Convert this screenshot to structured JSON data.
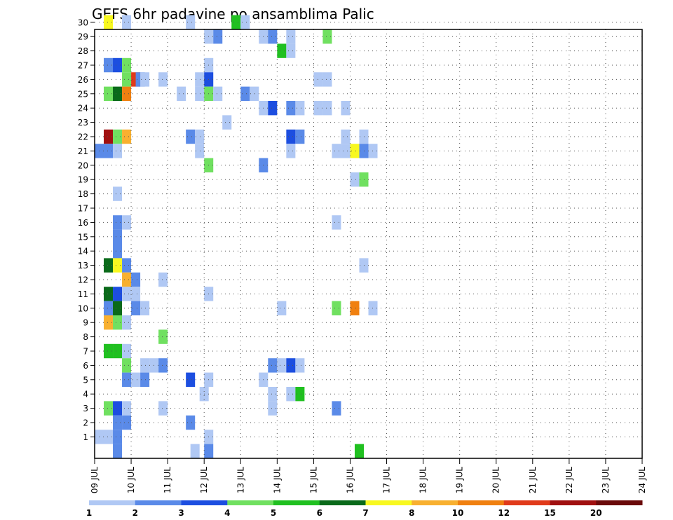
{
  "chart_data": {
    "type": "heatmap",
    "title": "GEFS 6hr padavine po ansamblima Palic",
    "xlabel": "",
    "ylabel": "",
    "x_ticks": [
      "09 JUL",
      "10 JUL",
      "11 JUL",
      "12 JUL",
      "13 JUL",
      "14 JUL",
      "15 JUL",
      "16 JUL",
      "17 JUL",
      "18 JUL",
      "19 JUL",
      "20 JUL",
      "21 JUL",
      "22 JUL",
      "23 JUL",
      "24 JUL"
    ],
    "x_unit": "6-hour step (4 per day)",
    "y_ticks": [
      "1",
      "2",
      "3",
      "4",
      "5",
      "6",
      "7",
      "8",
      "9",
      "10",
      "11",
      "12",
      "13",
      "14",
      "15",
      "16",
      "17",
      "18",
      "19",
      "20",
      "21",
      "22",
      "23",
      "24",
      "25",
      "26",
      "27",
      "28",
      "29",
      "30"
    ],
    "grid": true,
    "colorbar": {
      "labels": [
        "1",
        "2",
        "3",
        "4",
        "5",
        "6",
        "7",
        "8",
        "10",
        "12",
        "15",
        "20"
      ],
      "colors": [
        "#b0c8f4",
        "#5a8ae8",
        "#1c4ee0",
        "#70e060",
        "#20c020",
        "#0a6a1a",
        "#f8f820",
        "#f8b030",
        "#f08010",
        "#e03a1a",
        "#a01010",
        "#6a0a0a"
      ]
    },
    "cells": [
      {
        "step": 1,
        "member": 30,
        "class": 6
      },
      {
        "step": 3,
        "member": 30,
        "class": 0
      },
      {
        "step": 10,
        "member": 30,
        "class": 0
      },
      {
        "step": 15,
        "member": 30,
        "class": 4
      },
      {
        "step": 16,
        "member": 30,
        "class": 0
      },
      {
        "step": 12,
        "member": 29,
        "class": 0
      },
      {
        "step": 13,
        "member": 29,
        "class": 1
      },
      {
        "step": 18,
        "member": 29,
        "class": 0
      },
      {
        "step": 19,
        "member": 29,
        "class": 1
      },
      {
        "step": 21,
        "member": 29,
        "class": 0
      },
      {
        "step": 25,
        "member": 29,
        "class": 3
      },
      {
        "step": 20,
        "member": 28,
        "class": 4
      },
      {
        "step": 21,
        "member": 28,
        "class": 0
      },
      {
        "step": 1,
        "member": 27,
        "class": 1
      },
      {
        "step": 2,
        "member": 27,
        "class": 2
      },
      {
        "step": 3,
        "member": 27,
        "class": 3
      },
      {
        "step": 12,
        "member": 27,
        "class": 0
      },
      {
        "step": 3,
        "member": 26,
        "class": 3
      },
      {
        "step": 4,
        "member": 26,
        "class": 9
      },
      {
        "step": 4.5,
        "member": 26,
        "class": 1
      },
      {
        "step": 5,
        "member": 26,
        "class": 0
      },
      {
        "step": 7,
        "member": 26,
        "class": 0
      },
      {
        "step": 11,
        "member": 26,
        "class": 0
      },
      {
        "step": 12,
        "member": 26,
        "class": 2
      },
      {
        "step": 24,
        "member": 26,
        "class": 0
      },
      {
        "step": 25,
        "member": 26,
        "class": 0
      },
      {
        "step": 1,
        "member": 25,
        "class": 3
      },
      {
        "step": 2,
        "member": 25,
        "class": 5
      },
      {
        "step": 3,
        "member": 25,
        "class": 8
      },
      {
        "step": 9,
        "member": 25,
        "class": 0
      },
      {
        "step": 11,
        "member": 25,
        "class": 0
      },
      {
        "step": 12,
        "member": 25,
        "class": 3
      },
      {
        "step": 13,
        "member": 25,
        "class": 0
      },
      {
        "step": 16,
        "member": 25,
        "class": 1
      },
      {
        "step": 17,
        "member": 25,
        "class": 0
      },
      {
        "step": 18,
        "member": 24,
        "class": 0
      },
      {
        "step": 19,
        "member": 24,
        "class": 2
      },
      {
        "step": 21,
        "member": 24,
        "class": 1
      },
      {
        "step": 22,
        "member": 24,
        "class": 0
      },
      {
        "step": 24,
        "member": 24,
        "class": 0
      },
      {
        "step": 25,
        "member": 24,
        "class": 0
      },
      {
        "step": 27,
        "member": 24,
        "class": 0
      },
      {
        "step": 14,
        "member": 23,
        "class": 0
      },
      {
        "step": 1,
        "member": 22,
        "class": 10
      },
      {
        "step": 2,
        "member": 22,
        "class": 3
      },
      {
        "step": 3,
        "member": 22,
        "class": 7
      },
      {
        "step": 10,
        "member": 22,
        "class": 1
      },
      {
        "step": 11,
        "member": 22,
        "class": 0
      },
      {
        "step": 21,
        "member": 22,
        "class": 2
      },
      {
        "step": 22,
        "member": 22,
        "class": 1
      },
      {
        "step": 27,
        "member": 22,
        "class": 0
      },
      {
        "step": 29,
        "member": 22,
        "class": 0
      },
      {
        "step": 0,
        "member": 21,
        "class": 1
      },
      {
        "step": 1,
        "member": 21,
        "class": 1
      },
      {
        "step": 2,
        "member": 21,
        "class": 0
      },
      {
        "step": 11,
        "member": 21,
        "class": 0
      },
      {
        "step": 21,
        "member": 21,
        "class": 0
      },
      {
        "step": 26,
        "member": 21,
        "class": 0
      },
      {
        "step": 27,
        "member": 21,
        "class": 0
      },
      {
        "step": 28,
        "member": 21,
        "class": 6
      },
      {
        "step": 29,
        "member": 21,
        "class": 1
      },
      {
        "step": 30,
        "member": 21,
        "class": 0
      },
      {
        "step": 12,
        "member": 20,
        "class": 3
      },
      {
        "step": 18,
        "member": 20,
        "class": 1
      },
      {
        "step": 28,
        "member": 19,
        "class": 0
      },
      {
        "step": 29,
        "member": 19,
        "class": 3
      },
      {
        "step": 2,
        "member": 18,
        "class": 0
      },
      {
        "step": 2,
        "member": 16,
        "class": 1
      },
      {
        "step": 3,
        "member": 16,
        "class": 0
      },
      {
        "step": 26,
        "member": 16,
        "class": 0
      },
      {
        "step": 2,
        "member": 15,
        "class": 1
      },
      {
        "step": 2,
        "member": 14,
        "class": 1
      },
      {
        "step": 1,
        "member": 13,
        "class": 5
      },
      {
        "step": 2,
        "member": 13,
        "class": 6
      },
      {
        "step": 3,
        "member": 13,
        "class": 1
      },
      {
        "step": 29,
        "member": 13,
        "class": 0
      },
      {
        "step": 3,
        "member": 12,
        "class": 7
      },
      {
        "step": 4,
        "member": 12,
        "class": 1
      },
      {
        "step": 7,
        "member": 12,
        "class": 0
      },
      {
        "step": 1,
        "member": 11,
        "class": 5
      },
      {
        "step": 2,
        "member": 11,
        "class": 2
      },
      {
        "step": 3,
        "member": 11,
        "class": 0
      },
      {
        "step": 4,
        "member": 11,
        "class": 0
      },
      {
        "step": 12,
        "member": 11,
        "class": 0
      },
      {
        "step": 1,
        "member": 10,
        "class": 1
      },
      {
        "step": 2,
        "member": 10,
        "class": 5
      },
      {
        "step": 4,
        "member": 10,
        "class": 1
      },
      {
        "step": 5,
        "member": 10,
        "class": 0
      },
      {
        "step": 20,
        "member": 10,
        "class": 0
      },
      {
        "step": 26,
        "member": 10,
        "class": 3
      },
      {
        "step": 28,
        "member": 10,
        "class": 8
      },
      {
        "step": 30,
        "member": 10,
        "class": 0
      },
      {
        "step": 1,
        "member": 9,
        "class": 7
      },
      {
        "step": 2,
        "member": 9,
        "class": 3
      },
      {
        "step": 3,
        "member": 9,
        "class": 0
      },
      {
        "step": 7,
        "member": 8,
        "class": 3
      },
      {
        "step": 1,
        "member": 7,
        "class": 4
      },
      {
        "step": 2,
        "member": 7,
        "class": 4
      },
      {
        "step": 3,
        "member": 7,
        "class": 0
      },
      {
        "step": 3,
        "member": 6,
        "class": 3
      },
      {
        "step": 5,
        "member": 6,
        "class": 0
      },
      {
        "step": 6,
        "member": 6,
        "class": 0
      },
      {
        "step": 7,
        "member": 6,
        "class": 1
      },
      {
        "step": 19,
        "member": 6,
        "class": 1
      },
      {
        "step": 20,
        "member": 6,
        "class": 0
      },
      {
        "step": 21,
        "member": 6,
        "class": 2
      },
      {
        "step": 22,
        "member": 6,
        "class": 0
      },
      {
        "step": 3,
        "member": 5,
        "class": 1
      },
      {
        "step": 4,
        "member": 5,
        "class": 0
      },
      {
        "step": 5,
        "member": 5,
        "class": 1
      },
      {
        "step": 10,
        "member": 5,
        "class": 2
      },
      {
        "step": 12,
        "member": 5,
        "class": 0
      },
      {
        "step": 18,
        "member": 5,
        "class": 0
      },
      {
        "step": 11.5,
        "member": 4,
        "class": 0
      },
      {
        "step": 19,
        "member": 4,
        "class": 0
      },
      {
        "step": 21,
        "member": 4,
        "class": 0
      },
      {
        "step": 22,
        "member": 4,
        "class": 4
      },
      {
        "step": 1,
        "member": 3,
        "class": 3
      },
      {
        "step": 2,
        "member": 3,
        "class": 2
      },
      {
        "step": 3,
        "member": 3,
        "class": 0
      },
      {
        "step": 7,
        "member": 3,
        "class": 0
      },
      {
        "step": 19,
        "member": 3,
        "class": 0
      },
      {
        "step": 26,
        "member": 3,
        "class": 1
      },
      {
        "step": 2,
        "member": 2,
        "class": 1
      },
      {
        "step": 3,
        "member": 2,
        "class": 1
      },
      {
        "step": 10,
        "member": 2,
        "class": 1
      },
      {
        "step": 0,
        "member": 1,
        "class": 0
      },
      {
        "step": 1,
        "member": 1,
        "class": 0
      },
      {
        "step": 2,
        "member": 1,
        "class": 1
      },
      {
        "step": 12,
        "member": 1,
        "class": 0
      },
      {
        "step": 2,
        "member": 0,
        "class": 1
      },
      {
        "step": 10.5,
        "member": 0,
        "class": 0
      },
      {
        "step": 12,
        "member": 0,
        "class": 1
      },
      {
        "step": 28.5,
        "member": 0,
        "class": 4
      }
    ]
  }
}
